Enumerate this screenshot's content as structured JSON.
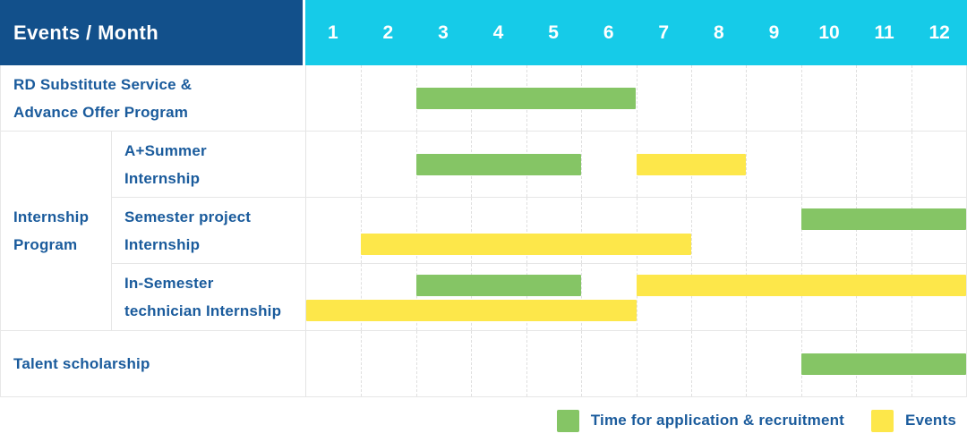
{
  "header": {
    "title": "Events / Month",
    "months": [
      "1",
      "2",
      "3",
      "4",
      "5",
      "6",
      "7",
      "8",
      "9",
      "10",
      "11",
      "12"
    ]
  },
  "legend": {
    "application_label": "Time for application & recruitment",
    "events_label": "Events"
  },
  "colors": {
    "header_blue": "#12508B",
    "month_cyan": "#16CBE8",
    "application_green": "#85C565",
    "event_yellow": "#FDE74A",
    "label_blue": "#1A5B9C"
  },
  "chart_data": {
    "type": "gantt",
    "title": "Events / Month",
    "x_axis": {
      "label": "Month",
      "ticks": [
        1,
        2,
        3,
        4,
        5,
        6,
        7,
        8,
        9,
        10,
        11,
        12
      ],
      "range": [
        1,
        12
      ]
    },
    "legend_entries": [
      {
        "name": "Time for application & recruitment",
        "series": "application",
        "color": "#85C565"
      },
      {
        "name": "Events",
        "series": "event",
        "color": "#FDE74A"
      }
    ],
    "rows": [
      {
        "group": null,
        "label": "RD Substitute Service & Advance Offer Program",
        "label_lines": [
          "RD Substitute Service &",
          "Advance Offer Program"
        ],
        "bars": [
          {
            "series": "application",
            "start_month": 3,
            "end_month": 6,
            "line": 0
          }
        ]
      },
      {
        "group": "Internship Program",
        "label": "A+Summer Internship",
        "label_lines": [
          "A+Summer",
          "Internship"
        ],
        "bars": [
          {
            "series": "application",
            "start_month": 3,
            "end_month": 5,
            "line": 0
          },
          {
            "series": "event",
            "start_month": 7,
            "end_month": 8,
            "line": 0
          }
        ]
      },
      {
        "group": "Internship Program",
        "label": "Semester project Internship",
        "label_lines": [
          "Semester project",
          "Internship"
        ],
        "bars": [
          {
            "series": "application",
            "start_month": 10,
            "end_month": 12,
            "line": 0
          },
          {
            "series": "event",
            "start_month": 2,
            "end_month": 7,
            "line": 1
          }
        ]
      },
      {
        "group": "Internship Program",
        "label": "In-Semester technician Internship",
        "label_lines": [
          "In-Semester",
          "technician Internship"
        ],
        "bars": [
          {
            "series": "application",
            "start_month": 3,
            "end_month": 5,
            "line": 0
          },
          {
            "series": "event",
            "start_month": 7,
            "end_month": 12,
            "line": 0
          },
          {
            "series": "event",
            "start_month": 1,
            "end_month": 6,
            "line": 1
          }
        ]
      },
      {
        "group": null,
        "label": "Talent scholarship",
        "label_lines": [
          "Talent scholarship"
        ],
        "bars": [
          {
            "series": "application",
            "start_month": 10,
            "end_month": 12,
            "line": 0
          }
        ]
      }
    ],
    "group_label_lines": {
      "Internship Program": [
        "Internship",
        "Program"
      ]
    }
  }
}
